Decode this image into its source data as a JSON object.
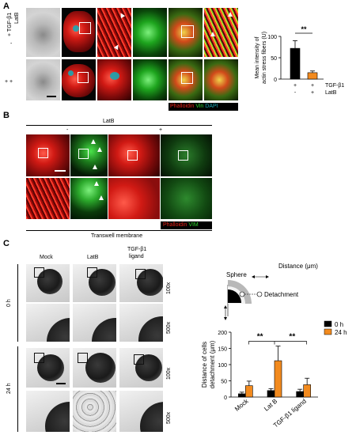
{
  "panel_a": {
    "letter": "A",
    "row_header_tgf": "TGF-β1",
    "row_header_latb": "LatB",
    "rows": [
      {
        "tgf": "+",
        "latb": "-"
      },
      {
        "tgf": "+",
        "latb": "+"
      }
    ],
    "legend": {
      "phalloidin": "Phalloidin",
      "vin": "Vin",
      "dapi": "DAPI"
    },
    "colors": {
      "phalloidin": "#e8231a",
      "vin": "#2fd52f",
      "dapi": "#1aa6b3"
    },
    "chart": {
      "ylabel": "Mean intensity of actin stress fibers (U)",
      "significance": "**",
      "conditions": [
        {
          "tgf": "+",
          "latb": "-"
        },
        {
          "tgf": "+",
          "latb": "+"
        }
      ],
      "row_labels": {
        "tgf": "TGF-β1",
        "latb": "LatB"
      }
    }
  },
  "panel_b": {
    "letter": "B",
    "latb_label": "LatB",
    "minus": "-",
    "plus": "+",
    "legend": {
      "phalloidin": "Phalloidin",
      "vim": "VIM"
    },
    "caption": "Transwell membrane"
  },
  "panel_c": {
    "letter": "C",
    "columns": [
      "Mock",
      "LatB",
      "TGF-β1\nligand"
    ],
    "col_mock": "Mock",
    "col_latb": "LatB",
    "col_tgf_line1": "TGF-β1",
    "col_tgf_line2": "ligand",
    "time_0": "0 h",
    "time_24": "24 h",
    "mag_100": "100x",
    "mag_500": "500x",
    "schema": {
      "distance": "Distance (μm)",
      "sphere": "Sphere",
      "detachment": "Detachment"
    },
    "chart": {
      "ylabel": "Distance of cells detachment (μm)",
      "significance_1": "**",
      "significance_2": "**",
      "legend": [
        "0 h",
        "24 h"
      ],
      "series_colors": {
        "0 h": "#000000",
        "24 h": "#f28a1e"
      }
    }
  },
  "chart_data": [
    {
      "type": "bar",
      "categories": [
        "TGF-β1 + / LatB -",
        "TGF-β1 + / LatB +"
      ],
      "values": [
        72,
        15
      ],
      "errors": [
        18,
        4
      ],
      "ylabel": "Mean intensity of actin stress fibers (U)",
      "ylim": [
        0,
        100
      ],
      "yticks": [
        0,
        50,
        100
      ],
      "colors": [
        "#000000",
        "#f28a1e"
      ]
    },
    {
      "type": "bar",
      "categories": [
        "Mock",
        "Lat B",
        "TGF-β1 ligand"
      ],
      "series": [
        {
          "name": "0 h",
          "values": [
            10,
            20,
            17
          ],
          "errors": [
            5,
            6,
            7
          ]
        },
        {
          "name": "24 h",
          "values": [
            35,
            112,
            38
          ],
          "errors": [
            14,
            45,
            20
          ]
        }
      ],
      "ylabel": "Distance of cells detachment (μm)",
      "ylim": [
        0,
        200
      ],
      "yticks": [
        0,
        50,
        100,
        150,
        200
      ],
      "legend": "top-right"
    }
  ]
}
